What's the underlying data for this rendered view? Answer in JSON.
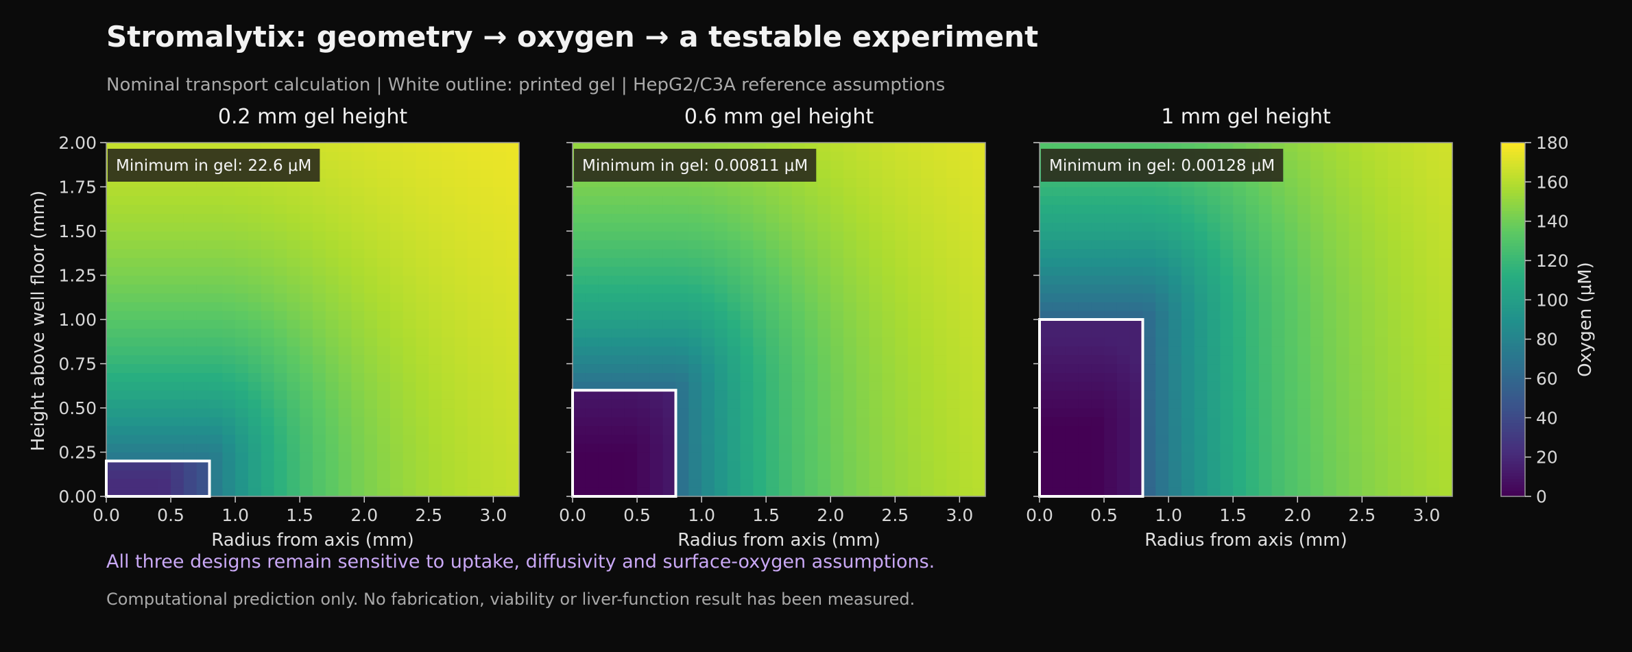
{
  "header": {
    "title": "Stromalytix: geometry → oxygen → a testable experiment",
    "subtitle": "Nominal transport calculation | White outline: printed gel | HepG2/C3A reference assumptions"
  },
  "footer": {
    "note": "All three designs remain sensitive to uptake, diffusivity and surface-oxygen assumptions.",
    "disclaimer": "Computational prediction only. No fabrication, viability or liver-function result has been measured."
  },
  "colors": {
    "background": "#0b0b0b",
    "note_text": "#c9a8f5",
    "gel_outline": "#ffffff",
    "colormap": [
      "#440154",
      "#472d7b",
      "#3b528b",
      "#2c728e",
      "#21918c",
      "#28ae80",
      "#5ec962",
      "#addc30",
      "#fde725"
    ]
  },
  "chart_data": {
    "type": "heatmap",
    "colormap": "viridis",
    "shared_axes": {
      "xlabel": "Radius from axis (mm)",
      "ylabel": "Height above well floor (mm)",
      "xlim": [
        0,
        3.2
      ],
      "ylim": [
        0,
        2.0
      ],
      "xticks": [
        "0.0",
        "0.5",
        "1.0",
        "1.5",
        "2.0",
        "2.5",
        "3.0"
      ],
      "yticks": [
        "0.00",
        "0.25",
        "0.50",
        "0.75",
        "1.00",
        "1.25",
        "1.50",
        "1.75",
        "2.00"
      ]
    },
    "colorbar": {
      "label": "Oxygen (μM)",
      "range": [
        0,
        180
      ],
      "ticks": [
        "0",
        "20",
        "40",
        "60",
        "80",
        "100",
        "120",
        "140",
        "160",
        "180"
      ]
    },
    "panels": [
      {
        "title": "0.2 mm gel height",
        "gel_height_mm": 0.2,
        "gel_radius_mm": 0.8,
        "annotation": "Minimum in gel: 22.6 μM",
        "min_uM": 22.6,
        "surface_uM": 180
      },
      {
        "title": "0.6 mm gel height",
        "gel_height_mm": 0.6,
        "gel_radius_mm": 0.8,
        "annotation": "Minimum in gel: 0.00811 μM",
        "min_uM": 0.00811,
        "surface_uM": 180
      },
      {
        "title": "1 mm gel height",
        "gel_height_mm": 1.0,
        "gel_radius_mm": 0.8,
        "annotation": "Minimum in gel: 0.00128 μM",
        "min_uM": 0.00128,
        "surface_uM": 180
      }
    ]
  }
}
